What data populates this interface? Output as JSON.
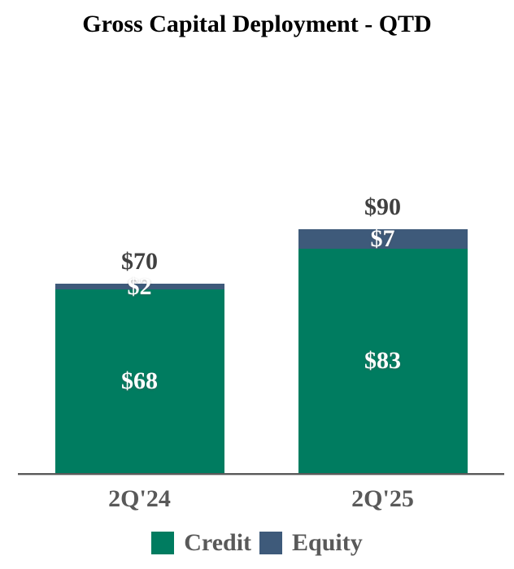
{
  "title": "Gross Capital Deployment - QTD",
  "colors": {
    "credit": "#007C60",
    "equity": "#3E5A7A",
    "title_text": "#000000",
    "total_label": "#404040",
    "axis_label": "#595959",
    "axis_line": "#595959",
    "segment_label": "#FFFFFF",
    "background": "#FFFFFF"
  },
  "chart_data": {
    "type": "bar",
    "stacked": true,
    "title": "Gross Capital Deployment - QTD",
    "categories": [
      "2Q'24",
      "2Q'25"
    ],
    "series": [
      {
        "name": "Credit",
        "color": "#007C60",
        "values": [
          68,
          83
        ],
        "labels": [
          "$68",
          "$83"
        ]
      },
      {
        "name": "Equity",
        "color": "#3E5A7A",
        "values": [
          2,
          7
        ],
        "labels": [
          "$2",
          "$7"
        ]
      }
    ],
    "totals": {
      "values": [
        70,
        90
      ],
      "labels": [
        "$70",
        "$90"
      ]
    },
    "value_prefix": "$",
    "ylim": [
      0,
      100
    ],
    "grid": false,
    "legend_position": "bottom"
  }
}
